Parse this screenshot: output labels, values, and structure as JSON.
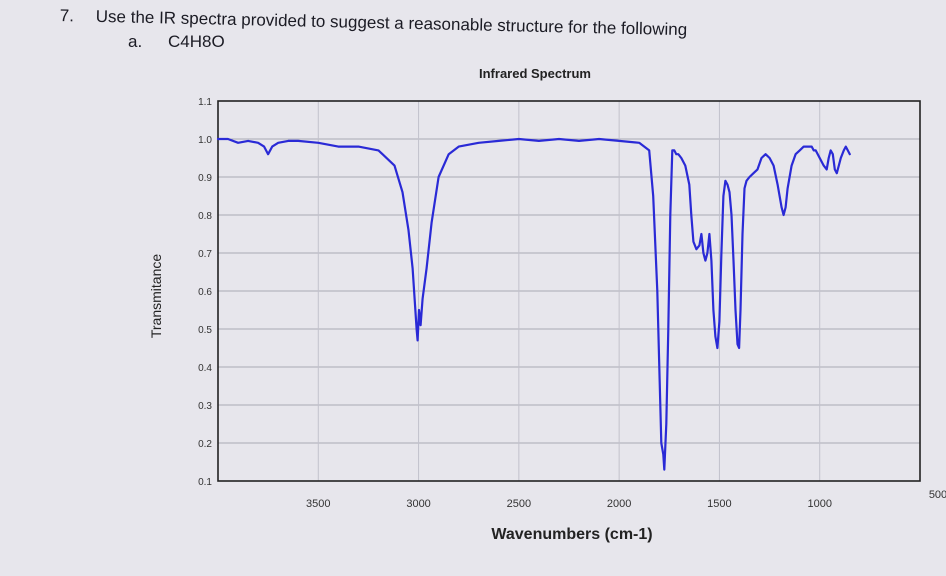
{
  "question": {
    "number": "7.",
    "text": "Use the IR spectra provided to suggest a reasonable structure for the following",
    "part_label": "a.",
    "formula": "C4H8O"
  },
  "chart_data": {
    "type": "line",
    "title": "Infrared Spectrum",
    "xlabel": "Wavenumbers (cm-1)",
    "ylabel": "Transmitance",
    "xlim": [
      4000,
      500
    ],
    "ylim": [
      0.1,
      1.1
    ],
    "x_ticks": [
      "3500",
      "3000",
      "2500",
      "2000",
      "1500",
      "1000",
      "500"
    ],
    "y_ticks": [
      "1.1",
      "1.0",
      "0.9",
      "0.8",
      "0.7",
      "0.6",
      "0.5",
      "0.4",
      "0.3",
      "0.2",
      "0.1"
    ],
    "grid": true,
    "line_color": "#2a2ad6",
    "series": [
      {
        "values": [
          [
            4000,
            1.0
          ],
          [
            3950,
            1.0
          ],
          [
            3900,
            0.99
          ],
          [
            3850,
            0.995
          ],
          [
            3800,
            0.99
          ],
          [
            3770,
            0.98
          ],
          [
            3750,
            0.96
          ],
          [
            3730,
            0.98
          ],
          [
            3700,
            0.99
          ],
          [
            3650,
            0.995
          ],
          [
            3600,
            0.995
          ],
          [
            3500,
            0.99
          ],
          [
            3400,
            0.98
          ],
          [
            3300,
            0.98
          ],
          [
            3200,
            0.97
          ],
          [
            3120,
            0.93
          ],
          [
            3080,
            0.86
          ],
          [
            3050,
            0.76
          ],
          [
            3030,
            0.66
          ],
          [
            3020,
            0.58
          ],
          [
            3010,
            0.5
          ],
          [
            3005,
            0.47
          ],
          [
            2998,
            0.55
          ],
          [
            2990,
            0.51
          ],
          [
            2980,
            0.58
          ],
          [
            2960,
            0.66
          ],
          [
            2935,
            0.78
          ],
          [
            2900,
            0.9
          ],
          [
            2850,
            0.96
          ],
          [
            2800,
            0.98
          ],
          [
            2700,
            0.99
          ],
          [
            2600,
            0.995
          ],
          [
            2500,
            1.0
          ],
          [
            2400,
            0.995
          ],
          [
            2300,
            1.0
          ],
          [
            2200,
            0.995
          ],
          [
            2100,
            1.0
          ],
          [
            2000,
            0.995
          ],
          [
            1900,
            0.99
          ],
          [
            1850,
            0.97
          ],
          [
            1830,
            0.85
          ],
          [
            1810,
            0.6
          ],
          [
            1800,
            0.4
          ],
          [
            1790,
            0.2
          ],
          [
            1780,
            0.17
          ],
          [
            1775,
            0.13
          ],
          [
            1765,
            0.25
          ],
          [
            1755,
            0.5
          ],
          [
            1745,
            0.8
          ],
          [
            1735,
            0.97
          ],
          [
            1725,
            0.97
          ],
          [
            1715,
            0.96
          ],
          [
            1705,
            0.96
          ],
          [
            1690,
            0.95
          ],
          [
            1670,
            0.93
          ],
          [
            1650,
            0.88
          ],
          [
            1640,
            0.8
          ],
          [
            1630,
            0.73
          ],
          [
            1615,
            0.71
          ],
          [
            1600,
            0.72
          ],
          [
            1590,
            0.75
          ],
          [
            1580,
            0.7
          ],
          [
            1570,
            0.68
          ],
          [
            1560,
            0.7
          ],
          [
            1550,
            0.75
          ],
          [
            1540,
            0.68
          ],
          [
            1530,
            0.55
          ],
          [
            1520,
            0.48
          ],
          [
            1510,
            0.45
          ],
          [
            1500,
            0.52
          ],
          [
            1490,
            0.7
          ],
          [
            1480,
            0.85
          ],
          [
            1470,
            0.89
          ],
          [
            1460,
            0.88
          ],
          [
            1450,
            0.86
          ],
          [
            1440,
            0.8
          ],
          [
            1430,
            0.68
          ],
          [
            1420,
            0.55
          ],
          [
            1410,
            0.46
          ],
          [
            1402,
            0.45
          ],
          [
            1395,
            0.55
          ],
          [
            1385,
            0.75
          ],
          [
            1375,
            0.87
          ],
          [
            1365,
            0.89
          ],
          [
            1350,
            0.9
          ],
          [
            1330,
            0.91
          ],
          [
            1310,
            0.92
          ],
          [
            1290,
            0.95
          ],
          [
            1270,
            0.96
          ],
          [
            1250,
            0.95
          ],
          [
            1230,
            0.93
          ],
          [
            1210,
            0.88
          ],
          [
            1190,
            0.82
          ],
          [
            1180,
            0.8
          ],
          [
            1170,
            0.82
          ],
          [
            1160,
            0.87
          ],
          [
            1140,
            0.93
          ],
          [
            1120,
            0.96
          ],
          [
            1100,
            0.97
          ],
          [
            1080,
            0.98
          ],
          [
            1060,
            0.98
          ],
          [
            1040,
            0.98
          ],
          [
            1030,
            0.97
          ],
          [
            1020,
            0.97
          ],
          [
            1000,
            0.95
          ],
          [
            980,
            0.93
          ],
          [
            965,
            0.92
          ],
          [
            955,
            0.95
          ],
          [
            945,
            0.97
          ],
          [
            935,
            0.96
          ],
          [
            925,
            0.92
          ],
          [
            915,
            0.91
          ],
          [
            905,
            0.93
          ],
          [
            895,
            0.95
          ],
          [
            880,
            0.97
          ],
          [
            870,
            0.98
          ],
          [
            860,
            0.97
          ],
          [
            850,
            0.96
          ]
        ]
      }
    ]
  }
}
